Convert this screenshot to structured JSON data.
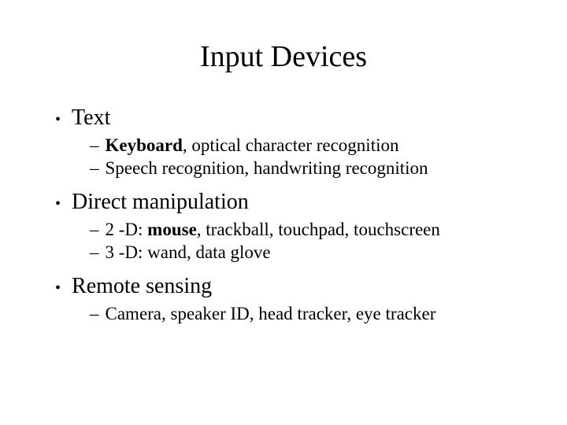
{
  "title": "Input Devices",
  "sections": [
    {
      "heading": "Text",
      "subs": [
        {
          "parts": [
            {
              "t": "Keyboard",
              "b": true
            },
            {
              "t": ", optical character recognition",
              "b": false
            }
          ]
        },
        {
          "parts": [
            {
              "t": "Speech recognition, handwriting recognition",
              "b": false
            }
          ]
        }
      ]
    },
    {
      "heading": "Direct manipulation",
      "subs": [
        {
          "parts": [
            {
              "t": "2 -D: ",
              "b": false
            },
            {
              "t": "mouse",
              "b": true
            },
            {
              "t": ", trackball, touchpad, touchscreen",
              "b": false
            }
          ]
        },
        {
          "parts": [
            {
              "t": "3 -D: wand, data glove",
              "b": false
            }
          ]
        }
      ]
    },
    {
      "heading": "Remote sensing",
      "subs": [
        {
          "parts": [
            {
              "t": "Camera, speaker ID, head tracker, eye tracker",
              "b": false
            }
          ]
        }
      ]
    }
  ],
  "style": {
    "background": "#ffffff",
    "text_color": "#000000",
    "font_family": "Times New Roman",
    "title_fontsize": 38,
    "l1_fontsize": 28,
    "l2_fontsize": 23
  }
}
